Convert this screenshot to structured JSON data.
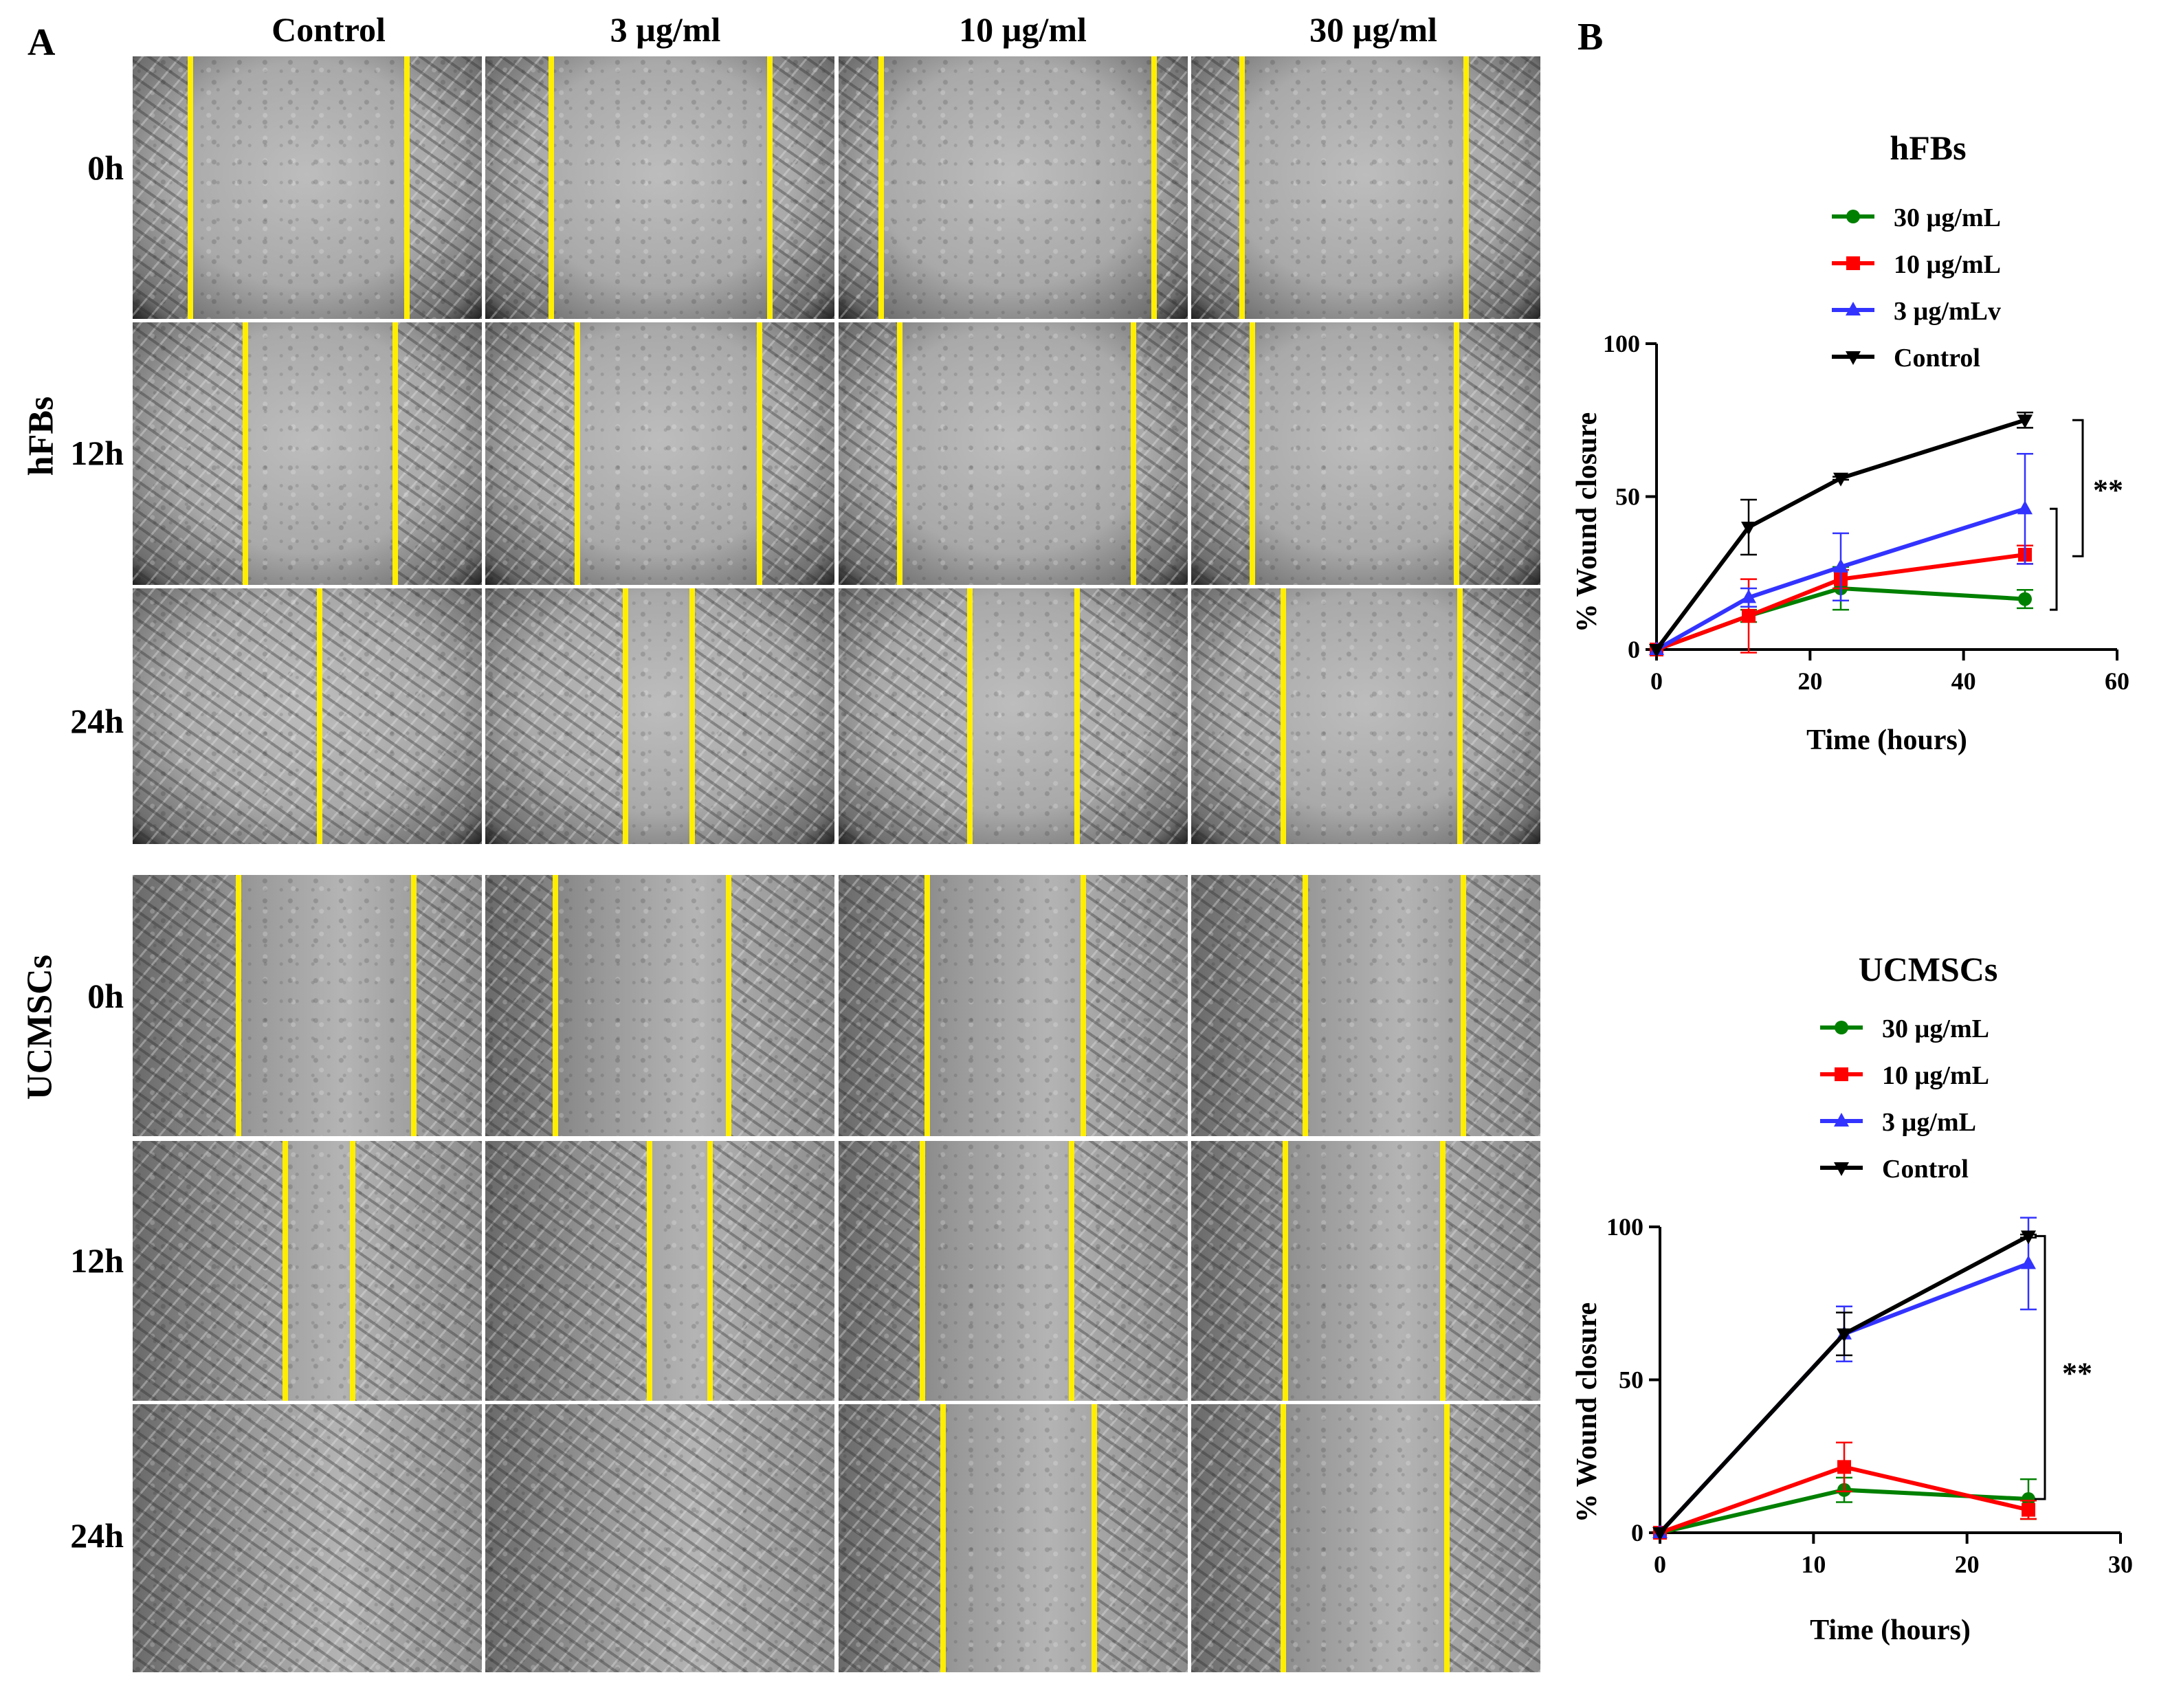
{
  "panel_a_label": "A",
  "panel_b_label": "B",
  "column_headers": [
    "Control",
    "3 µg/ml",
    "10 µg/ml",
    "30 µg/ml"
  ],
  "group_labels": {
    "hfbs": "hFBs",
    "ucmscs": "UCMSCs"
  },
  "row_labels": [
    "0h",
    "12h",
    "24h"
  ],
  "chart_data": [
    {
      "type": "line",
      "title": "hFBs",
      "xlabel": "Time (hours)",
      "ylabel": "% Wound closure",
      "xlim": [
        0,
        60
      ],
      "ylim": [
        0,
        100
      ],
      "xticks": [
        "0",
        "20",
        "40",
        "60"
      ],
      "yticks": [
        "0",
        "50",
        "100"
      ],
      "x": [
        0,
        12,
        24,
        48
      ],
      "significance": "**",
      "series": [
        {
          "name": "30 µg/mL",
          "color": "#008000",
          "marker": "circle",
          "values": [
            0,
            11,
            20,
            16.5
          ],
          "errors": [
            0,
            2,
            7,
            3
          ]
        },
        {
          "name": "10 µg/mL",
          "color": "#ff0000",
          "marker": "square",
          "values": [
            0,
            11,
            23,
            31
          ],
          "errors": [
            0,
            12,
            3,
            3
          ]
        },
        {
          "name": "3 µg/mLv",
          "color": "#3333ff",
          "marker": "triangle-up",
          "values": [
            0,
            17,
            27,
            46
          ],
          "errors": [
            0,
            3,
            11,
            18
          ]
        },
        {
          "name": "Control",
          "color": "#000000",
          "marker": "triangle-down",
          "values": [
            0,
            40,
            56,
            75
          ],
          "errors": [
            0,
            9,
            0.5,
            2.5
          ]
        }
      ]
    },
    {
      "type": "line",
      "title": "UCMSCs",
      "xlabel": "Time (hours)",
      "ylabel": "% Wound closure",
      "xlim": [
        0,
        30
      ],
      "ylim": [
        0,
        100
      ],
      "xticks": [
        "0",
        "10",
        "20",
        "30"
      ],
      "yticks": [
        "0",
        "50",
        "100"
      ],
      "x": [
        0,
        12,
        24
      ],
      "significance": "**",
      "series": [
        {
          "name": "30 µg/mL",
          "color": "#008000",
          "marker": "circle",
          "values": [
            0,
            14,
            11
          ],
          "errors": [
            0,
            4,
            6.5
          ]
        },
        {
          "name": "10 µg/mL",
          "color": "#ff0000",
          "marker": "square",
          "values": [
            0,
            21.5,
            7.5
          ],
          "errors": [
            0,
            8,
            3
          ]
        },
        {
          "name": "3 µg/mL",
          "color": "#3333ff",
          "marker": "triangle-up",
          "values": [
            0,
            65,
            88
          ],
          "errors": [
            0,
            9,
            15
          ]
        },
        {
          "name": "Control",
          "color": "#000000",
          "marker": "triangle-down",
          "values": [
            0,
            65,
            97
          ],
          "errors": [
            0,
            7,
            0.5
          ]
        }
      ]
    }
  ]
}
